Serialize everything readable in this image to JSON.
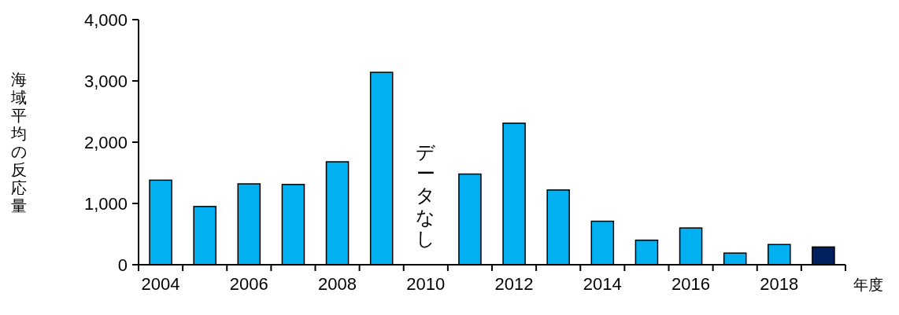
{
  "chart_data": {
    "type": "bar",
    "xlabel": "年度",
    "ylabel": "海域平均の反応量",
    "categories": [
      "2004",
      null,
      "2006",
      null,
      "2008",
      null,
      "2010",
      null,
      "2012",
      null,
      "2014",
      null,
      "2016",
      null,
      "2018",
      null
    ],
    "values": [
      1380,
      950,
      1320,
      1310,
      1680,
      3140,
      null,
      1480,
      2310,
      1220,
      710,
      400,
      600,
      190,
      330,
      290
    ],
    "colors": [
      "#00b0f0",
      "#00b0f0",
      "#00b0f0",
      "#00b0f0",
      "#00b0f0",
      "#00b0f0",
      null,
      "#00b0f0",
      "#00b0f0",
      "#00b0f0",
      "#00b0f0",
      "#00b0f0",
      "#00b0f0",
      "#00b0f0",
      "#00b0f0",
      "#002060"
    ],
    "ylim": [
      0,
      4000
    ],
    "yticks": [
      {
        "value": 0,
        "label": "0"
      },
      {
        "value": 1000,
        "label": "1,000"
      },
      {
        "value": 2000,
        "label": "2,000"
      },
      {
        "value": 3000,
        "label": "3,000"
      },
      {
        "value": 4000,
        "label": "4,000"
      }
    ],
    "annotations": [
      "データなし"
    ]
  }
}
